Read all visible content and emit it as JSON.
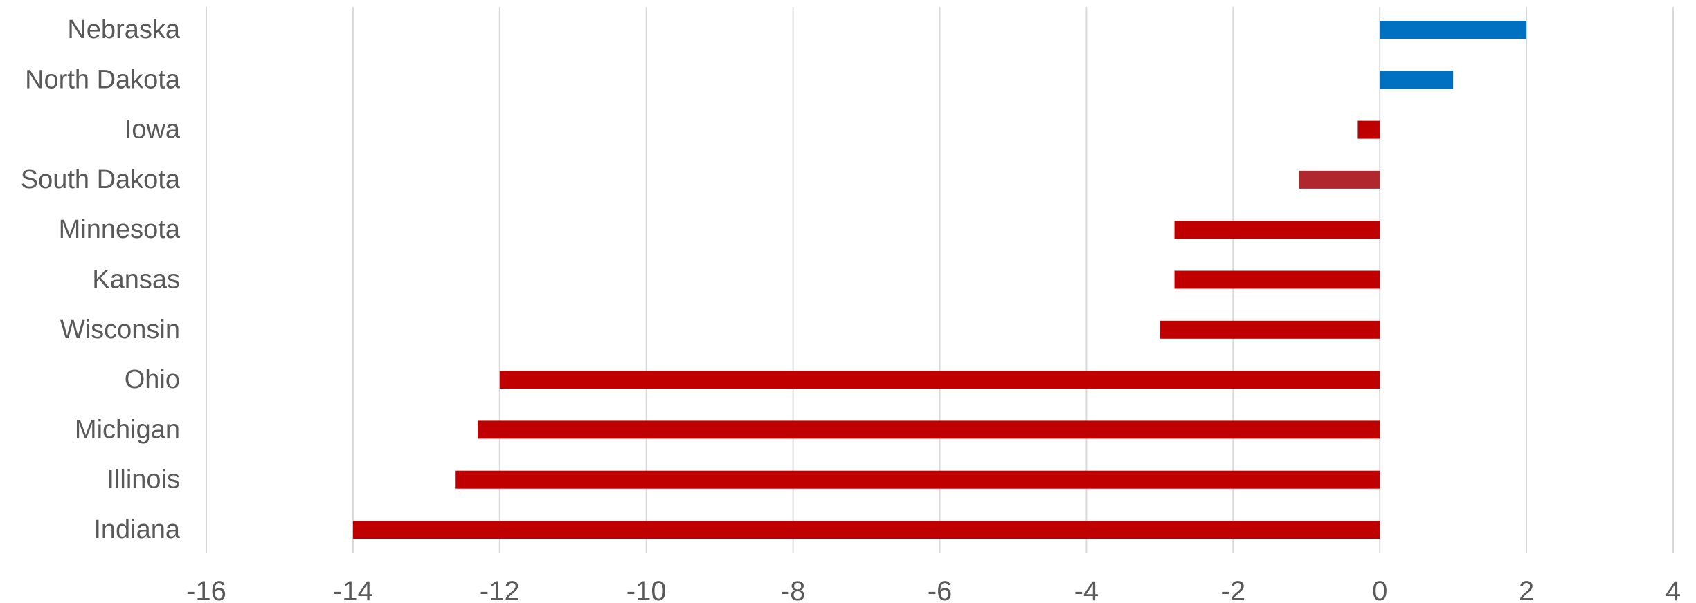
{
  "chart_data": {
    "type": "bar",
    "orientation": "horizontal",
    "title": "",
    "xlabel": "",
    "ylabel": "",
    "categories": [
      "Nebraska",
      "North Dakota",
      "Iowa",
      "South Dakota",
      "Minnesota",
      "Kansas",
      "Wisconsin",
      "Ohio",
      "Michigan",
      "Illinois",
      "Indiana"
    ],
    "values": [
      2,
      1,
      -0.3,
      -1.1,
      -2.8,
      -2.8,
      -3,
      -12,
      -12.3,
      -12.6,
      -14
    ],
    "bar_colors": [
      "#0070C0",
      "#0070C0",
      "#C00000",
      "#B0282E",
      "#C00000",
      "#C00000",
      "#C00000",
      "#C00000",
      "#C00000",
      "#C00000",
      "#C00000"
    ],
    "xlim": [
      -16,
      4
    ],
    "x_ticks": [
      -16,
      -14,
      -12,
      -10,
      -8,
      -6,
      -4,
      -2,
      0,
      2,
      4
    ],
    "grid": "vertical",
    "legend": "none"
  }
}
